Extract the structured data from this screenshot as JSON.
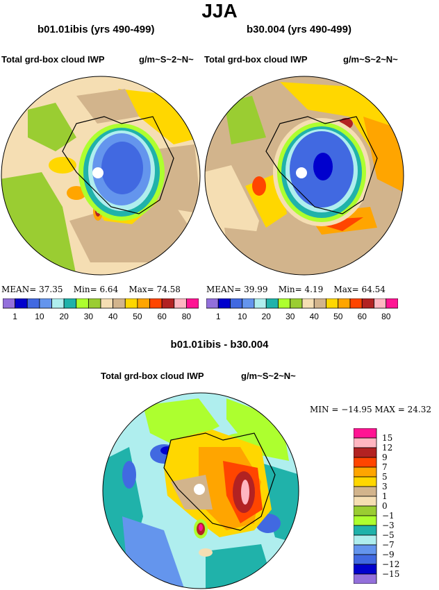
{
  "title": "JJA",
  "panels": [
    {
      "title": "b01.01ibis (yrs 490-499)",
      "variable": "Total grd-box cloud IWP",
      "units": "g/m~S~2~N~",
      "stats": {
        "mean_label": "MEAN=",
        "mean": "37.35",
        "min_label": "Min=",
        "min": "6.64",
        "max_label": "Max=",
        "max": "74.58"
      }
    },
    {
      "title": "b30.004 (yrs 490-499)",
      "variable": "Total grd-box cloud IWP",
      "units": "g/m~S~2~N~",
      "stats": {
        "mean_label": "MEAN=",
        "mean": "39.99",
        "min_label": "Min=",
        "min": "4.19",
        "max_label": "Max=",
        "max": "64.54"
      }
    }
  ],
  "colorbar_abs": {
    "colors": [
      "#9370DB",
      "#0000CD",
      "#4169E1",
      "#6495ED",
      "#AFEEEE",
      "#20B2AA",
      "#ADFF2F",
      "#9ACD32",
      "#F5DEB3",
      "#D2B48C",
      "#FFD700",
      "#FFA500",
      "#FF4500",
      "#B22222",
      "#FFB6C1",
      "#FF1493"
    ],
    "labels": [
      "1",
      "10",
      "20",
      "30",
      "40",
      "50",
      "60",
      "80"
    ]
  },
  "difference": {
    "title": "b01.01ibis - b30.004",
    "variable": "Total grd-box cloud IWP",
    "units": "g/m~S~2~N~",
    "stats": "MIN = −14.95 MAX =  24.32",
    "colorbar": {
      "colors": [
        "#FF1493",
        "#FFB6C1",
        "#B22222",
        "#FF4500",
        "#FFA500",
        "#FFD700",
        "#D2B48C",
        "#F5DEB3",
        "#9ACD32",
        "#ADFF2F",
        "#20B2AA",
        "#AFEEEE",
        "#6495ED",
        "#4169E1",
        "#0000CD",
        "#9370DB"
      ],
      "labels": [
        "15",
        "12",
        "9",
        "7",
        "5",
        "3",
        "1",
        "0",
        "−1",
        "−3",
        "−5",
        "−7",
        "−9",
        "−12",
        "−15"
      ]
    }
  }
}
